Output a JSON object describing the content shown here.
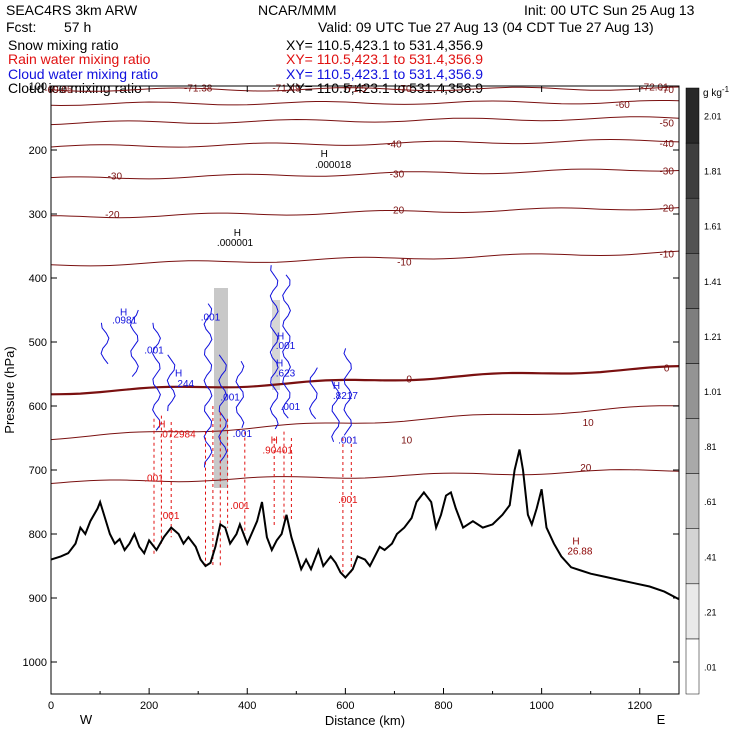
{
  "header": {
    "model": "SEAC4RS   3km ARW",
    "center": "NCAR/MMM",
    "init": "Init: 00 UTC Sun 25 Aug 13",
    "fcst_label": "Fcst:",
    "fcst_value": "57 h",
    "valid": "Valid: 09 UTC Tue 27 Aug 13 (04 CDT Tue 27 Aug 13)"
  },
  "fields": [
    {
      "name": "Snow mixing ratio",
      "xy": "XY=  110.5,423.1  to  531.4,356.9",
      "color": "#000000"
    },
    {
      "name": "Rain water mixing ratio",
      "xy": "XY=  110.5,423.1  to  531.4,356.9",
      "color": "#e01010"
    },
    {
      "name": "Cloud water mixing ratio",
      "xy": "XY=  110.5,423.1  to  531.4,356.9",
      "color": "#1010dd"
    },
    {
      "name": "Cloud ice mixing ratio",
      "xy": "XY=  110.5,423.1  to  531.4,356.9",
      "color": "#000000"
    }
  ],
  "chart_data": {
    "type": "cross-section",
    "xlabel": "Distance (km)",
    "ylabel": "Pressure (hPa)",
    "xlim": [
      0,
      1280
    ],
    "ylim": [
      1050,
      100
    ],
    "x_ticks": [
      0,
      200,
      400,
      600,
      800,
      1000,
      1200
    ],
    "y_ticks": [
      100,
      200,
      300,
      400,
      500,
      600,
      700,
      800,
      900,
      1000
    ],
    "y_tick_labels": [
      "100",
      "200",
      "300",
      "400",
      "500",
      "600",
      "700",
      "800",
      "900",
      "1000"
    ],
    "left_end_label": "W",
    "right_end_label": "E",
    "terrain_profile": [
      [
        0,
        840
      ],
      [
        20,
        835
      ],
      [
        35,
        830
      ],
      [
        50,
        815
      ],
      [
        60,
        790
      ],
      [
        70,
        800
      ],
      [
        80,
        780
      ],
      [
        95,
        760
      ],
      [
        100,
        750
      ],
      [
        110,
        775
      ],
      [
        120,
        800
      ],
      [
        130,
        815
      ],
      [
        140,
        808
      ],
      [
        150,
        825
      ],
      [
        160,
        815
      ],
      [
        170,
        800
      ],
      [
        180,
        820
      ],
      [
        190,
        830
      ],
      [
        200,
        810
      ],
      [
        215,
        825
      ],
      [
        230,
        805
      ],
      [
        245,
        790
      ],
      [
        260,
        800
      ],
      [
        270,
        815
      ],
      [
        280,
        805
      ],
      [
        295,
        820
      ],
      [
        305,
        840
      ],
      [
        315,
        850
      ],
      [
        325,
        845
      ],
      [
        335,
        820
      ],
      [
        345,
        785
      ],
      [
        355,
        790
      ],
      [
        365,
        815
      ],
      [
        378,
        800
      ],
      [
        385,
        785
      ],
      [
        400,
        815
      ],
      [
        420,
        780
      ],
      [
        430,
        750
      ],
      [
        440,
        805
      ],
      [
        450,
        825
      ],
      [
        460,
        810
      ],
      [
        470,
        800
      ],
      [
        480,
        770
      ],
      [
        490,
        805
      ],
      [
        500,
        830
      ],
      [
        510,
        855
      ],
      [
        520,
        840
      ],
      [
        530,
        855
      ],
      [
        545,
        825
      ],
      [
        555,
        850
      ],
      [
        570,
        835
      ],
      [
        580,
        845
      ],
      [
        590,
        860
      ],
      [
        600,
        868
      ],
      [
        615,
        855
      ],
      [
        625,
        835
      ],
      [
        640,
        840
      ],
      [
        650,
        850
      ],
      [
        660,
        835
      ],
      [
        670,
        820
      ],
      [
        680,
        825
      ],
      [
        695,
        815
      ],
      [
        705,
        800
      ],
      [
        720,
        790
      ],
      [
        735,
        775
      ],
      [
        745,
        750
      ],
      [
        760,
        735
      ],
      [
        775,
        750
      ],
      [
        785,
        790
      ],
      [
        795,
        770
      ],
      [
        805,
        740
      ],
      [
        815,
        735
      ],
      [
        825,
        760
      ],
      [
        840,
        790
      ],
      [
        860,
        780
      ],
      [
        880,
        790
      ],
      [
        900,
        785
      ],
      [
        920,
        770
      ],
      [
        935,
        755
      ],
      [
        945,
        700
      ],
      [
        955,
        668
      ],
      [
        962,
        700
      ],
      [
        972,
        770
      ],
      [
        980,
        785
      ],
      [
        990,
        760
      ],
      [
        1000,
        730
      ],
      [
        1010,
        790
      ],
      [
        1025,
        815
      ],
      [
        1040,
        835
      ],
      [
        1060,
        852
      ],
      [
        1080,
        857
      ],
      [
        1100,
        862
      ],
      [
        1130,
        867
      ],
      [
        1160,
        872
      ],
      [
        1190,
        877
      ],
      [
        1220,
        882
      ],
      [
        1250,
        890
      ],
      [
        1280,
        902
      ]
    ],
    "temperature_contours": [
      {
        "label": "-70",
        "p_left": 106,
        "p_right": 104
      },
      {
        "label": "-60",
        "p_left": 128,
        "p_right": 125
      },
      {
        "label": "-50",
        "p_left": 158,
        "p_right": 150
      },
      {
        "label": "-40",
        "p_left": 195,
        "p_right": 185
      },
      {
        "label": "-30",
        "p_left": 245,
        "p_right": 230
      },
      {
        "label": "-20",
        "p_left": 305,
        "p_right": 290
      },
      {
        "label": "-10",
        "p_left": 380,
        "p_right": 360
      },
      {
        "label": "0",
        "p_left": 580,
        "p_right": 540
      },
      {
        "label": "10",
        "p_left": 650,
        "p_right": 600
      },
      {
        "label": "20",
        "p_left": 720,
        "p_right": 700
      }
    ],
    "contour_labels": [
      {
        "text": "-69.05",
        "x": 15,
        "p": 105
      },
      {
        "text": "-71.38",
        "x": 300,
        "p": 102
      },
      {
        "text": "-71.49",
        "x": 480,
        "p": 102
      },
      {
        "text": "-71.5",
        "x": 620,
        "p": 103
      },
      {
        "text": "-70",
        "x": 720,
        "p": 103
      },
      {
        "text": "-72.01",
        "x": 1230,
        "p": 101
      },
      {
        "text": "-70",
        "x": 1255,
        "p": 105
      },
      {
        "text": "-60",
        "x": 1165,
        "p": 128
      },
      {
        "text": "-50",
        "x": 1255,
        "p": 157
      },
      {
        "text": "-40",
        "x": 700,
        "p": 190
      },
      {
        "text": "-40",
        "x": 1255,
        "p": 189
      },
      {
        "text": "-30",
        "x": 130,
        "p": 240
      },
      {
        "text": "-30",
        "x": 705,
        "p": 237
      },
      {
        "text": "-30",
        "x": 1255,
        "p": 232
      },
      {
        "text": "-20",
        "x": 125,
        "p": 300
      },
      {
        "text": "-20",
        "x": 705,
        "p": 293
      },
      {
        "text": "-20",
        "x": 1255,
        "p": 290
      },
      {
        "text": "-10",
        "x": 720,
        "p": 374
      },
      {
        "text": "-10",
        "x": 1255,
        "p": 362
      },
      {
        "text": "0",
        "x": 730,
        "p": 557
      },
      {
        "text": "0",
        "x": 1255,
        "p": 540
      },
      {
        "text": "10",
        "x": 725,
        "p": 652
      },
      {
        "text": "10",
        "x": 1095,
        "p": 625
      },
      {
        "text": "20",
        "x": 1090,
        "p": 695
      }
    ],
    "annotations": [
      {
        "text": "H",
        "x": 557,
        "p": 205,
        "color": "#000000"
      },
      {
        "text": ".000018",
        "x": 575,
        "p": 222,
        "color": "#000000"
      },
      {
        "text": "H",
        "x": 380,
        "p": 328,
        "color": "#000000"
      },
      {
        "text": ".000001",
        "x": 375,
        "p": 344,
        "color": "#000000"
      },
      {
        "text": "H",
        "x": 148,
        "p": 452,
        "color": "#1010dd"
      },
      {
        "text": ".0981",
        "x": 150,
        "p": 465,
        "color": "#1010dd"
      },
      {
        "text": ".001",
        "x": 210,
        "p": 512,
        "color": "#1010dd"
      },
      {
        "text": ".001",
        "x": 325,
        "p": 460,
        "color": "#1010dd"
      },
      {
        "text": "H",
        "x": 260,
        "p": 548,
        "color": "#1010dd"
      },
      {
        "text": ".244",
        "x": 272,
        "p": 564,
        "color": "#1010dd"
      },
      {
        "text": ".001",
        "x": 365,
        "p": 585,
        "color": "#1010dd"
      },
      {
        "text": "H",
        "x": 468,
        "p": 490,
        "color": "#1010dd"
      },
      {
        "text": ".001",
        "x": 478,
        "p": 505,
        "color": "#1010dd"
      },
      {
        "text": "H",
        "x": 466,
        "p": 532,
        "color": "#1010dd"
      },
      {
        "text": ".623",
        "x": 478,
        "p": 548,
        "color": "#1010dd"
      },
      {
        "text": ".001",
        "x": 488,
        "p": 600,
        "color": "#1010dd"
      },
      {
        "text": "H",
        "x": 582,
        "p": 567,
        "color": "#1010dd"
      },
      {
        "text": ".8217",
        "x": 600,
        "p": 583,
        "color": "#1010dd"
      },
      {
        "text": ".001",
        "x": 390,
        "p": 642,
        "color": "#1010dd"
      },
      {
        "text": ".001",
        "x": 605,
        "p": 652,
        "color": "#1010dd"
      },
      {
        "text": "H",
        "x": 226,
        "p": 627,
        "color": "#e01010"
      },
      {
        "text": ".072984",
        "x": 258,
        "p": 643,
        "color": "#e01010"
      },
      {
        "text": "H",
        "x": 455,
        "p": 652,
        "color": "#e01010"
      },
      {
        "text": ".90401",
        "x": 462,
        "p": 668,
        "color": "#e01010"
      },
      {
        "text": ".001",
        "x": 210,
        "p": 712,
        "color": "#e01010"
      },
      {
        "text": ".001",
        "x": 242,
        "p": 770,
        "color": "#e01010"
      },
      {
        "text": ".001",
        "x": 385,
        "p": 755,
        "color": "#e01010"
      },
      {
        "text": ".001",
        "x": 605,
        "p": 745,
        "color": "#e01010"
      },
      {
        "text": "H",
        "x": 1070,
        "p": 810,
        "color": "#8b0000"
      },
      {
        "text": "26.88",
        "x": 1078,
        "p": 826,
        "color": "#8b0000"
      }
    ],
    "colorbar": {
      "unit": "g kg",
      "unit_exp": "-1",
      "levels": [
        ".01",
        ".21",
        ".41",
        ".61",
        ".81",
        "1.01",
        "1.21",
        "1.41",
        "1.61",
        "1.81",
        "2.01"
      ]
    }
  }
}
